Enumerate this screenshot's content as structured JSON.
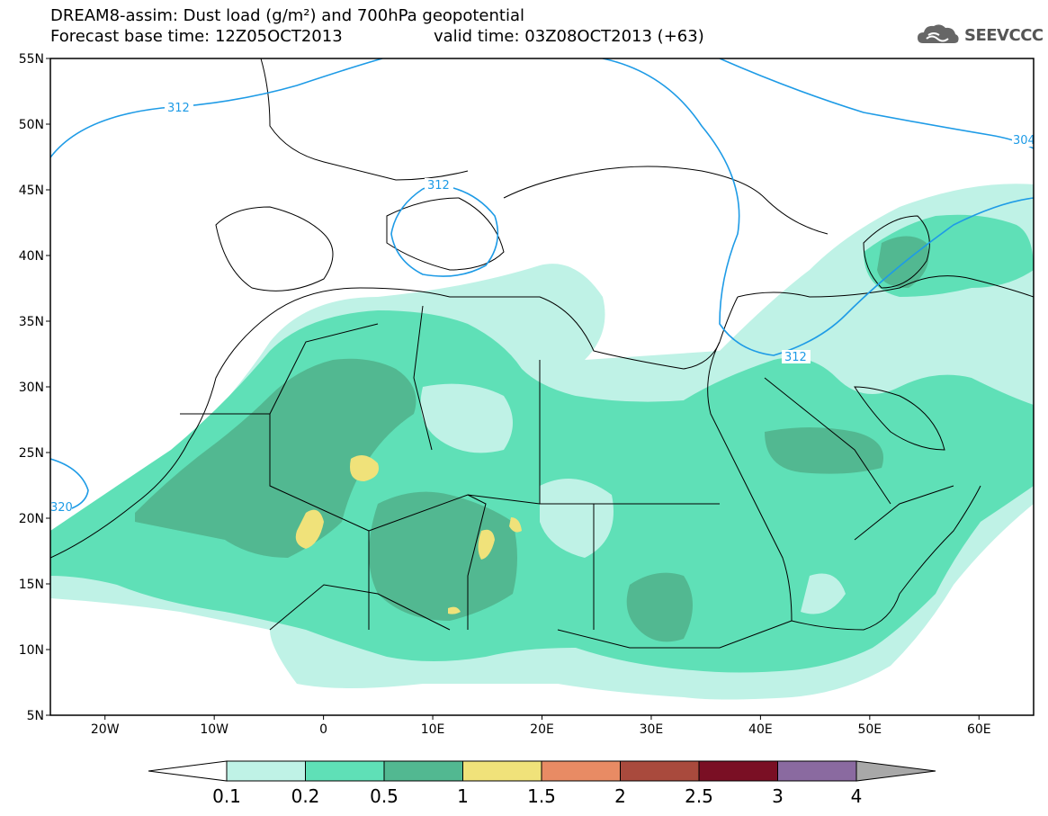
{
  "title": {
    "line1": "DREAM8-assim: Dust load (g/m²) and 700hPa geopotential",
    "line2a": "Forecast base time: 12Z05OCT2013",
    "line2b": "valid time: 03Z08OCT2013 (+63)"
  },
  "logo": {
    "text": "SEEVCCC",
    "icon": "cloud-icon"
  },
  "map": {
    "extent": {
      "lon": [
        -25,
        65
      ],
      "lat": [
        5,
        55
      ]
    },
    "lat_ticks": [
      {
        "value": 55,
        "label": "55N"
      },
      {
        "value": 50,
        "label": "50N"
      },
      {
        "value": 45,
        "label": "45N"
      },
      {
        "value": 40,
        "label": "40N"
      },
      {
        "value": 35,
        "label": "35N"
      },
      {
        "value": 30,
        "label": "30N"
      },
      {
        "value": 25,
        "label": "25N"
      },
      {
        "value": 20,
        "label": "20N"
      },
      {
        "value": 15,
        "label": "15N"
      },
      {
        "value": 10,
        "label": "10N"
      },
      {
        "value": 5,
        "label": "5N"
      }
    ],
    "lon_ticks": [
      {
        "value": -20,
        "label": "20W"
      },
      {
        "value": -10,
        "label": "10W"
      },
      {
        "value": 0,
        "label": "0"
      },
      {
        "value": 10,
        "label": "10E"
      },
      {
        "value": 20,
        "label": "20E"
      },
      {
        "value": 30,
        "label": "30E"
      },
      {
        "value": 40,
        "label": "40E"
      },
      {
        "value": 50,
        "label": "50E"
      },
      {
        "value": 60,
        "label": "60E"
      }
    ],
    "contour_labels": [
      "312",
      "312",
      "312",
      "304",
      "320"
    ],
    "contour_color": "#1e9be6"
  },
  "colorbar": {
    "ticks": [
      "0.1",
      "0.2",
      "0.5",
      "1",
      "1.5",
      "2",
      "2.5",
      "3",
      "4"
    ],
    "colors": [
      "#bff2e6",
      "#5fe0b7",
      "#52b891",
      "#f0e27a",
      "#e88b64",
      "#a94a3d",
      "#7a0f24",
      "#8a6aa0"
    ],
    "over_color": "#a8a8a8",
    "under_color": "#ffffff"
  },
  "dust_colors": {
    "level1": "#bff2e6",
    "level2": "#5fe0b7",
    "level3": "#52b891",
    "level4": "#f0e27a"
  }
}
